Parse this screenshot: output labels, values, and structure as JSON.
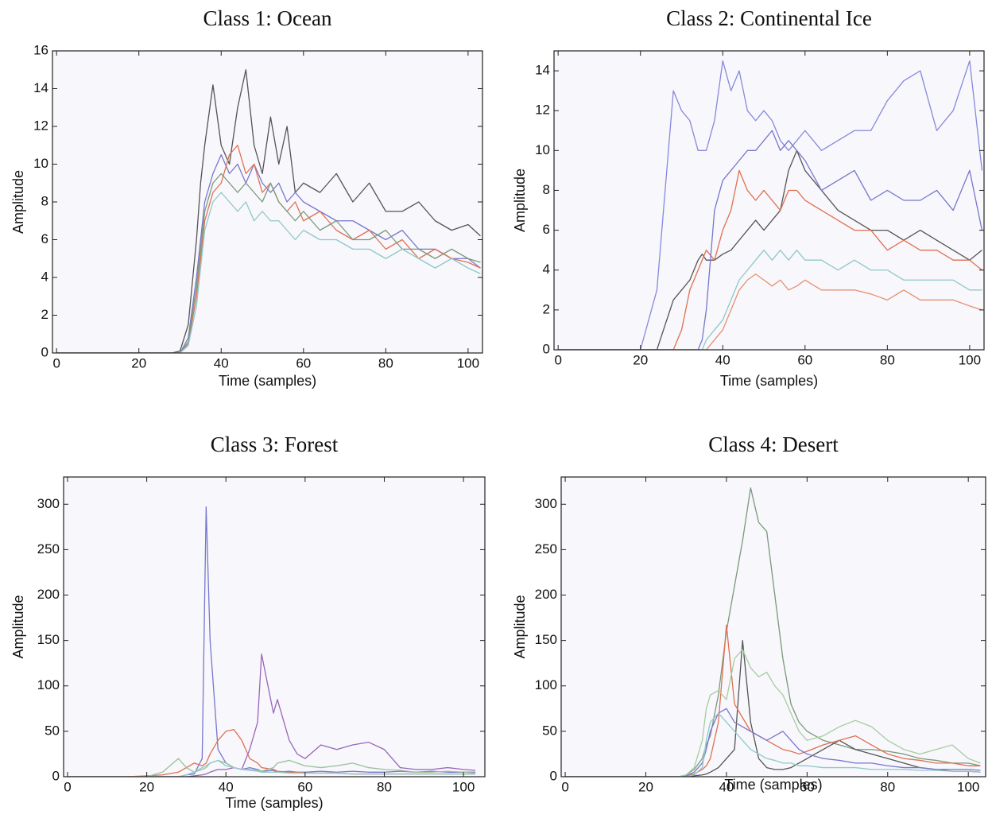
{
  "chart_data": [
    {
      "type": "line",
      "title": "Class 1: Ocean",
      "xlabel": "Time (samples)",
      "ylabel": "Amplitude",
      "x": [
        0,
        5,
        10,
        15,
        20,
        24,
        28,
        30,
        32,
        34,
        35,
        36,
        38,
        40,
        42,
        44,
        46,
        48,
        50,
        52,
        54,
        56,
        58,
        60,
        64,
        68,
        72,
        76,
        80,
        84,
        88,
        92,
        96,
        100,
        103
      ],
      "xlim": [
        -1,
        103.5
      ],
      "ylim": [
        0,
        16
      ],
      "xticks": [
        0,
        20,
        40,
        60,
        80,
        100
      ],
      "yticks": [
        0,
        2,
        4,
        6,
        8,
        10,
        12,
        14,
        16
      ],
      "series": [
        {
          "color": "#555555",
          "values": [
            0,
            0,
            0,
            0,
            0,
            0,
            0,
            0.1,
            1.5,
            6,
            9,
            11,
            14.2,
            11,
            10,
            13,
            15,
            11,
            9.5,
            12.5,
            10,
            12,
            8.5,
            9,
            8.5,
            9.5,
            8,
            9,
            7.5,
            7.5,
            8,
            7,
            6.5,
            6.8,
            6.2
          ]
        },
        {
          "color": "#7777cc",
          "values": [
            0,
            0,
            0,
            0,
            0,
            0,
            0,
            0,
            0.8,
            4,
            6,
            8,
            9.5,
            10.5,
            9.5,
            10,
            9,
            10,
            9,
            8.5,
            9,
            8,
            8.5,
            8,
            7.5,
            7,
            7,
            6.5,
            6,
            6.5,
            5.5,
            5.5,
            5,
            5,
            4.5
          ]
        },
        {
          "color": "#e07050",
          "values": [
            0,
            0,
            0,
            0,
            0,
            0,
            0,
            0,
            0.5,
            3,
            5,
            7,
            8.5,
            9,
            10.5,
            11,
            9.5,
            10,
            8.5,
            9,
            8,
            7.5,
            8,
            7,
            7.5,
            6.5,
            6,
            6.5,
            5.5,
            6,
            5,
            5.5,
            5,
            4.8,
            4.5
          ]
        },
        {
          "color": "#7a9a7a",
          "values": [
            0,
            0,
            0,
            0,
            0,
            0,
            0,
            0,
            0.6,
            3.5,
            5.5,
            7.5,
            9,
            9.5,
            9,
            8.5,
            9,
            8.5,
            8,
            9,
            8,
            7.5,
            7,
            7.5,
            6.5,
            7,
            6,
            6,
            6.5,
            5.5,
            5.5,
            5,
            5.5,
            5,
            4.8
          ]
        },
        {
          "color": "#90c8c8",
          "values": [
            0,
            0,
            0,
            0,
            0,
            0,
            0,
            0,
            0.4,
            2.5,
            4.5,
            6.5,
            8,
            8.5,
            8,
            7.5,
            8,
            7,
            7.5,
            7,
            7,
            6.5,
            6,
            6.5,
            6,
            6,
            5.5,
            5.5,
            5,
            5.5,
            5,
            4.5,
            5,
            4.5,
            4.2
          ]
        }
      ]
    },
    {
      "type": "line",
      "title": "Class 2: Continental Ice",
      "xlabel": "Time (samples)",
      "ylabel": "Amplitude",
      "x": [
        0,
        5,
        10,
        15,
        20,
        24,
        28,
        30,
        32,
        34,
        35,
        36,
        38,
        40,
        42,
        44,
        46,
        48,
        50,
        52,
        54,
        56,
        58,
        60,
        64,
        68,
        72,
        76,
        80,
        84,
        88,
        92,
        96,
        100,
        103
      ],
      "xlim": [
        -1,
        103.5
      ],
      "ylim": [
        0,
        15
      ],
      "xticks": [
        0,
        20,
        40,
        60,
        80,
        100
      ],
      "yticks": [
        0,
        2,
        4,
        6,
        8,
        10,
        12,
        14
      ],
      "series": [
        {
          "color": "#8888dd",
          "values": [
            0,
            0,
            0,
            0,
            0,
            3,
            13,
            12,
            11.5,
            10,
            10,
            10,
            11.5,
            14.5,
            13,
            14,
            12,
            11.5,
            12,
            11.5,
            10.5,
            10,
            10.5,
            11,
            10,
            10.5,
            11,
            11,
            12.5,
            13.5,
            14,
            11,
            12,
            14.5,
            9
          ]
        },
        {
          "color": "#555555",
          "values": [
            0,
            0,
            0,
            0,
            0,
            0,
            2.5,
            3,
            3.5,
            4.5,
            4.8,
            4.5,
            4.5,
            4.8,
            5,
            5.5,
            6,
            6.5,
            6,
            6.5,
            7,
            9,
            10,
            9,
            8,
            7,
            6.5,
            6,
            6,
            5.5,
            6,
            5.5,
            5,
            4.5,
            5
          ]
        },
        {
          "color": "#e07050",
          "values": [
            0,
            0,
            0,
            0,
            0,
            0,
            0,
            1,
            3,
            4,
            4.5,
            5,
            4.5,
            6,
            7,
            9,
            8,
            7.5,
            8,
            7.5,
            7,
            8,
            8,
            7.5,
            7,
            6.5,
            6,
            6,
            5,
            5.5,
            5,
            5,
            4.5,
            4.5,
            4
          ]
        },
        {
          "color": "#7777cc",
          "values": [
            0,
            0,
            0,
            0,
            0,
            0,
            0,
            0,
            0,
            0,
            0.5,
            2,
            7,
            8.5,
            9,
            9.5,
            10,
            10,
            10.5,
            11,
            10,
            10.5,
            10,
            9.5,
            8,
            8.5,
            9,
            7.5,
            8,
            7.5,
            7.5,
            8,
            7,
            9,
            6
          ]
        },
        {
          "color": "#90c8c8",
          "values": [
            0,
            0,
            0,
            0,
            0,
            0,
            0,
            0,
            0,
            0,
            0,
            0.5,
            1,
            1.5,
            2.5,
            3.5,
            4,
            4.5,
            5,
            4.5,
            5,
            4.5,
            5,
            4.5,
            4.5,
            4,
            4.5,
            4,
            4,
            3.5,
            3.5,
            3.5,
            3.5,
            3,
            3
          ]
        },
        {
          "color": "#e89070",
          "values": [
            0,
            0,
            0,
            0,
            0,
            0,
            0,
            0,
            0,
            0,
            0,
            0,
            0.5,
            1,
            2,
            3,
            3.5,
            3.8,
            3.5,
            3.2,
            3.5,
            3,
            3.2,
            3.5,
            3,
            3,
            3,
            2.8,
            2.5,
            3,
            2.5,
            2.5,
            2.5,
            2.2,
            2
          ]
        }
      ]
    },
    {
      "type": "line",
      "title": "Class 3: Forest",
      "xlabel": "Time (samples)",
      "ylabel": "Amplitude",
      "x": [
        0,
        5,
        10,
        15,
        20,
        24,
        28,
        30,
        32,
        34,
        35,
        36,
        38,
        40,
        42,
        44,
        46,
        48,
        49,
        52,
        53,
        56,
        58,
        60,
        64,
        68,
        72,
        76,
        80,
        84,
        88,
        92,
        96,
        100,
        103
      ],
      "xlim": [
        -1,
        105.4
      ],
      "ylim": [
        0,
        330
      ],
      "xticks": [
        0,
        20,
        40,
        60,
        80,
        100
      ],
      "yticks": [
        0,
        50,
        100,
        150,
        200,
        250,
        300
      ],
      "series": [
        {
          "color": "#7777cc",
          "values": [
            0,
            0,
            0,
            0,
            0,
            0,
            0,
            2,
            3,
            20,
            297,
            150,
            30,
            15,
            10,
            8,
            10,
            8,
            6,
            7,
            5,
            6,
            5,
            5,
            6,
            5,
            6,
            5,
            5,
            6,
            5,
            6,
            5,
            5,
            5
          ]
        },
        {
          "color": "#9966bb",
          "values": [
            0,
            0,
            0,
            0,
            0,
            0,
            0,
            0,
            1,
            2,
            3,
            5,
            8,
            8,
            10,
            8,
            30,
            60,
            135,
            70,
            85,
            40,
            25,
            20,
            35,
            30,
            35,
            38,
            30,
            10,
            8,
            8,
            10,
            8,
            7
          ]
        },
        {
          "color": "#e07050",
          "values": [
            0,
            0,
            0,
            0,
            1,
            2,
            5,
            10,
            15,
            12,
            15,
            25,
            40,
            50,
            52,
            40,
            20,
            15,
            10,
            8,
            6,
            5,
            5,
            4,
            4,
            4,
            3,
            3,
            3,
            3,
            3,
            3,
            3,
            3,
            3
          ]
        },
        {
          "color": "#9ac09a",
          "values": [
            0,
            0,
            0,
            0,
            0,
            5,
            20,
            10,
            5,
            8,
            10,
            15,
            18,
            15,
            10,
            8,
            8,
            7,
            6,
            10,
            15,
            18,
            15,
            12,
            10,
            12,
            15,
            10,
            8,
            7,
            5,
            5,
            6,
            5,
            4
          ]
        },
        {
          "color": "#90c8c8",
          "values": [
            0,
            0,
            0,
            0,
            0,
            0,
            0,
            2,
            5,
            10,
            12,
            15,
            18,
            12,
            10,
            8,
            7,
            6,
            5,
            5,
            5,
            4,
            4,
            4,
            4,
            4,
            3,
            3,
            3,
            3,
            3,
            3,
            3,
            3,
            3
          ]
        }
      ]
    },
    {
      "type": "line",
      "title": "Class 4: Desert",
      "xlabel": "Time (samples)",
      "ylabel": "Amplitude",
      "x": [
        0,
        5,
        10,
        15,
        20,
        24,
        28,
        30,
        32,
        34,
        35,
        36,
        38,
        40,
        42,
        44,
        46,
        48,
        50,
        52,
        54,
        56,
        58,
        60,
        64,
        68,
        72,
        76,
        80,
        84,
        88,
        92,
        96,
        100,
        103
      ],
      "xlim": [
        -1,
        104.3
      ],
      "ylim": [
        0,
        330
      ],
      "xticks": [
        0,
        20,
        40,
        60,
        80,
        100
      ],
      "yticks": [
        0,
        50,
        100,
        150,
        200,
        250,
        300
      ],
      "series": [
        {
          "color": "#7a9a7a",
          "values": [
            0,
            0,
            0,
            0,
            0,
            0,
            0,
            2,
            8,
            20,
            35,
            45,
            90,
            160,
            210,
            260,
            318,
            280,
            270,
            200,
            130,
            80,
            60,
            50,
            40,
            35,
            30,
            30,
            28,
            25,
            20,
            18,
            15,
            15,
            12
          ]
        },
        {
          "color": "#555555",
          "values": [
            0,
            0,
            0,
            0,
            0,
            0,
            0,
            0,
            1,
            2,
            3,
            5,
            10,
            20,
            30,
            150,
            60,
            20,
            10,
            8,
            8,
            10,
            15,
            20,
            30,
            40,
            30,
            25,
            20,
            15,
            10,
            8,
            6,
            6,
            5
          ]
        },
        {
          "color": "#e07050",
          "values": [
            0,
            0,
            0,
            0,
            0,
            0,
            0,
            1,
            3,
            8,
            12,
            20,
            60,
            167,
            80,
            65,
            50,
            45,
            40,
            35,
            30,
            28,
            25,
            28,
            35,
            40,
            45,
            35,
            25,
            20,
            18,
            15,
            15,
            12,
            12
          ]
        },
        {
          "color": "#7777cc",
          "values": [
            0,
            0,
            0,
            0,
            0,
            0,
            0,
            1,
            5,
            15,
            30,
            50,
            70,
            75,
            60,
            55,
            50,
            45,
            40,
            45,
            50,
            40,
            30,
            25,
            20,
            18,
            15,
            15,
            12,
            10,
            10,
            8,
            8,
            8,
            7
          ]
        },
        {
          "color": "#a8cca0",
          "values": [
            0,
            0,
            0,
            0,
            0,
            0,
            0,
            2,
            10,
            40,
            75,
            90,
            95,
            85,
            130,
            140,
            120,
            110,
            115,
            100,
            90,
            70,
            50,
            40,
            45,
            55,
            62,
            55,
            40,
            30,
            25,
            30,
            35,
            20,
            15
          ]
        },
        {
          "color": "#90c8c8",
          "values": [
            0,
            0,
            0,
            0,
            0,
            0,
            0,
            0,
            2,
            10,
            40,
            60,
            70,
            60,
            50,
            40,
            30,
            25,
            20,
            18,
            15,
            15,
            12,
            12,
            10,
            10,
            10,
            8,
            8,
            8,
            7,
            7,
            6,
            6,
            5
          ]
        }
      ]
    }
  ]
}
